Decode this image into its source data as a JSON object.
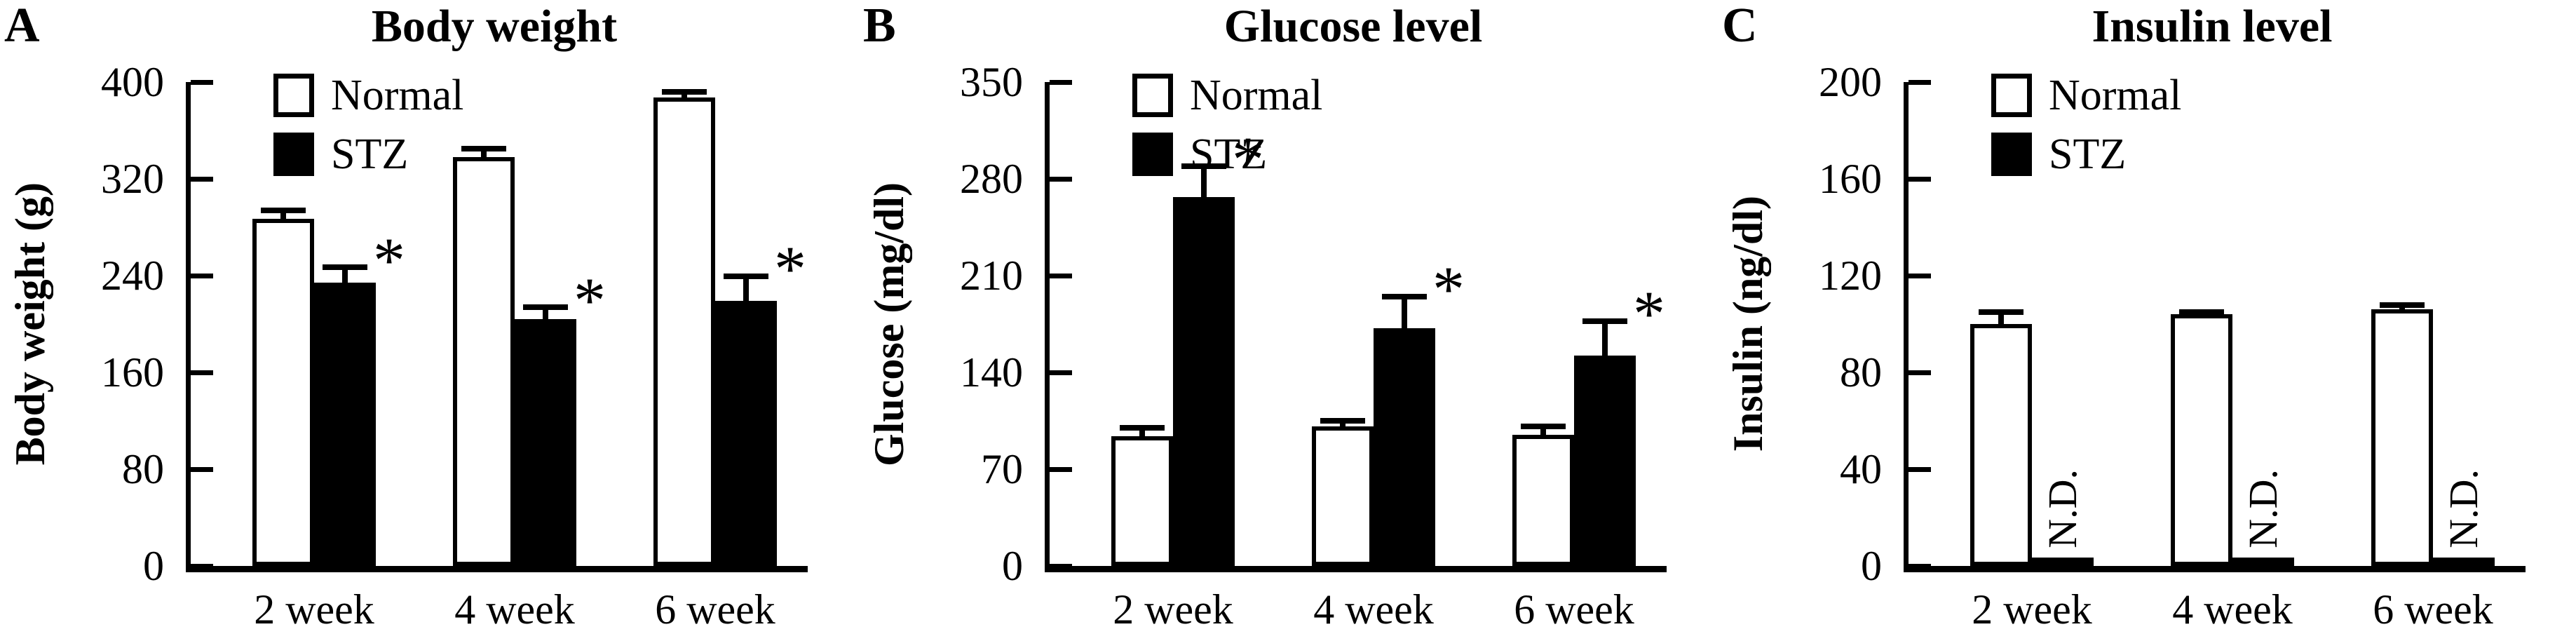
{
  "figure": {
    "background_color": "#ffffff",
    "ink_color": "#000000"
  },
  "legend": {
    "position": "top-left-inside",
    "items": [
      {
        "label": "Normal",
        "fill": "#ffffff"
      },
      {
        "label": "STZ",
        "fill": "#000000"
      }
    ]
  },
  "annotations": {
    "significance_marker": "*",
    "not_detected_label": "N.D."
  },
  "chart_data": [
    {
      "type": "bar",
      "panel_letter": "A",
      "title": "Body weight",
      "ylabel": "Body weight (g)",
      "categories": [
        "2 week",
        "4 week",
        "6 week"
      ],
      "ylim": [
        0,
        400
      ],
      "yticks": [
        0,
        80,
        160,
        240,
        320,
        400
      ],
      "grid": false,
      "series": [
        {
          "name": "Normal",
          "fill": "#ffffff",
          "values": [
            287,
            338,
            387
          ],
          "errors": [
            9,
            9,
            7
          ],
          "significant": [
            false,
            false,
            false
          ],
          "not_detected": [
            false,
            false,
            false
          ]
        },
        {
          "name": "STZ",
          "fill": "#000000",
          "values": [
            234,
            204,
            219
          ],
          "errors": [
            15,
            12,
            23
          ],
          "significant": [
            true,
            true,
            true
          ],
          "not_detected": [
            false,
            false,
            false
          ]
        }
      ]
    },
    {
      "type": "bar",
      "panel_letter": "B",
      "title": "Glucose level",
      "ylabel": "Glucose (mg/dl)",
      "categories": [
        "2 week",
        "4 week",
        "6 week"
      ],
      "ylim": [
        0,
        350
      ],
      "yticks": [
        0,
        70,
        140,
        210,
        280,
        350
      ],
      "grid": false,
      "series": [
        {
          "name": "Normal",
          "fill": "#ffffff",
          "values": [
            94,
            101,
            95
          ],
          "errors": [
            8,
            6,
            8
          ],
          "significant": [
            false,
            false,
            false
          ],
          "not_detected": [
            false,
            false,
            false
          ]
        },
        {
          "name": "STZ",
          "fill": "#000000",
          "values": [
            267,
            172,
            152
          ],
          "errors": [
            24,
            25,
            27
          ],
          "significant": [
            true,
            true,
            true
          ],
          "not_detected": [
            false,
            false,
            false
          ]
        }
      ]
    },
    {
      "type": "bar",
      "panel_letter": "C",
      "title": "Insulin level",
      "ylabel": "Insulin (ng/dl)",
      "categories": [
        "2 week",
        "4 week",
        "6 week"
      ],
      "ylim": [
        0,
        200
      ],
      "yticks": [
        0,
        40,
        80,
        120,
        160,
        200
      ],
      "grid": false,
      "series": [
        {
          "name": "Normal",
          "fill": "#ffffff",
          "values": [
            100,
            104,
            106
          ],
          "errors": [
            6,
            2,
            3
          ],
          "significant": [
            false,
            false,
            false
          ],
          "not_detected": [
            false,
            false,
            false
          ]
        },
        {
          "name": "STZ",
          "fill": "#000000",
          "values": [
            2,
            2,
            2
          ],
          "errors": [
            0,
            0,
            0
          ],
          "significant": [
            false,
            false,
            false
          ],
          "not_detected": [
            true,
            true,
            true
          ]
        }
      ]
    }
  ]
}
